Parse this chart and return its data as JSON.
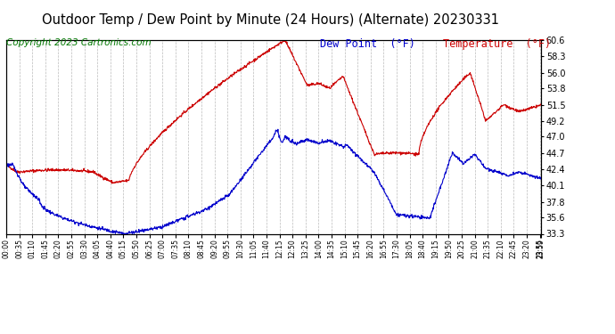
{
  "title": "Outdoor Temp / Dew Point by Minute (24 Hours) (Alternate) 20230331",
  "copyright": "Copyright 2023 Cartronics.com",
  "legend_dew": "Dew Point  (°F)",
  "legend_temp": "Temperature  (°F)",
  "temp_color": "#cc0000",
  "dew_color": "#0000cc",
  "copyright_color": "#007700",
  "ylim_min": 33.3,
  "ylim_max": 60.6,
  "yticks": [
    33.3,
    35.6,
    37.8,
    40.1,
    42.4,
    44.7,
    47.0,
    49.2,
    51.5,
    53.8,
    56.0,
    58.3,
    60.6
  ],
  "background_color": "#ffffff",
  "grid_color": "#aaaaaa",
  "title_fontsize": 10.5,
  "copyright_fontsize": 7.5,
  "legend_fontsize": 8.5
}
